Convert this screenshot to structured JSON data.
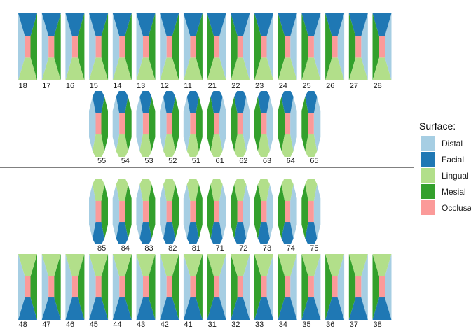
{
  "legend": {
    "title": "Surface:",
    "items": [
      {
        "key": "distal",
        "label": "Distal",
        "color": "#A6CEE3"
      },
      {
        "key": "facial",
        "label": "Facial",
        "color": "#1F78B4"
      },
      {
        "key": "lingual",
        "label": "Lingual",
        "color": "#B2DF8A"
      },
      {
        "key": "mesial",
        "label": "Mesial",
        "color": "#33A02C"
      },
      {
        "key": "occlusal",
        "label": "Occlusal",
        "color": "#FB9A99"
      }
    ]
  },
  "rows": [
    {
      "id": "upper-permanent",
      "type": "permanent",
      "facial_top": true,
      "teeth": [
        "18",
        "17",
        "16",
        "15",
        "14",
        "13",
        "12",
        "11",
        "21",
        "22",
        "23",
        "24",
        "25",
        "26",
        "27",
        "28"
      ]
    },
    {
      "id": "upper-primary",
      "type": "primary",
      "facial_top": true,
      "teeth": [
        "55",
        "54",
        "53",
        "52",
        "51",
        "61",
        "62",
        "63",
        "64",
        "65"
      ]
    },
    {
      "id": "lower-primary",
      "type": "primary",
      "facial_top": false,
      "teeth": [
        "85",
        "84",
        "83",
        "82",
        "81",
        "71",
        "72",
        "73",
        "74",
        "75"
      ]
    },
    {
      "id": "lower-permanent",
      "type": "permanent",
      "facial_top": false,
      "teeth": [
        "48",
        "47",
        "46",
        "45",
        "44",
        "43",
        "42",
        "41",
        "31",
        "32",
        "33",
        "34",
        "35",
        "36",
        "37",
        "38"
      ]
    }
  ],
  "divider_color": "#000000"
}
